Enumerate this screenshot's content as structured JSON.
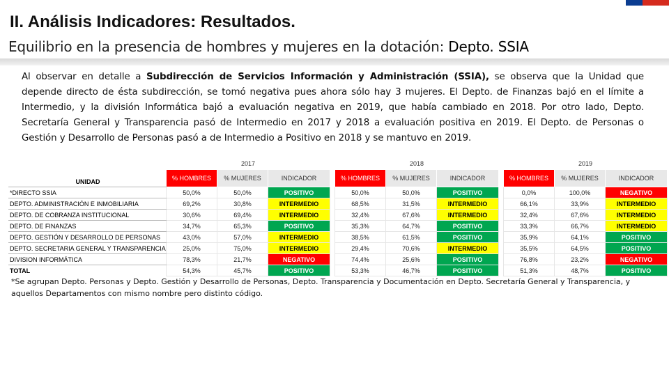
{
  "header": {
    "title": "II. Análisis Indicadores: Resultados.",
    "subtitle_prefix": "Equilibrio en la presencia de hombres y mujeres en la dotación: ",
    "subtitle_strong": "Depto. SSIA"
  },
  "paragraph": {
    "p1": "Al observar en detalle a ",
    "p1_strong": "Subdirección de Servicios Información y Administración (SSIA),",
    "p2": " se observa que la Unidad que depende directo de ésta subdirección, se tomó negativa pues ahora sólo hay 3 mujeres. El Depto. de Finanzas bajó en el límite a Intermedio, y la división Informática bajó a evaluación negativa en 2019, que había cambiado en 2018. Por otro lado, Depto. Secretaría General y Transparencia pasó de Intermedio en 2017 y 2018 a evaluación positiva en 2019. El Depto. de Personas o Gestión y Desarrollo de Personas pasó a de Intermedio a Positivo en 2018 y se mantuvo en 2019."
  },
  "table": {
    "unit_header": "UNIDAD",
    "col_headers": [
      "% HOMBRES",
      "% MUJERES",
      "INDICADOR"
    ],
    "years": [
      "2017",
      "2018",
      "2019"
    ],
    "rows": [
      {
        "unit": "*DIRECTO SSIA",
        "y2017": [
          "50,0%",
          "50,0%",
          "POSITIVO"
        ],
        "y2018": [
          "50,0%",
          "50,0%",
          "POSITIVO"
        ],
        "y2019": [
          "0,0%",
          "100,0%",
          "NEGATIVO"
        ]
      },
      {
        "unit": "DEPTO. ADMINISTRACIÓN E INMOBILIARIA",
        "y2017": [
          "69,2%",
          "30,8%",
          "INTERMEDIO"
        ],
        "y2018": [
          "68,5%",
          "31,5%",
          "INTERMEDIO"
        ],
        "y2019": [
          "66,1%",
          "33,9%",
          "INTERMEDIO"
        ]
      },
      {
        "unit": "DEPTO. DE COBRANZA INSTITUCIONAL",
        "y2017": [
          "30,6%",
          "69,4%",
          "INTERMEDIO"
        ],
        "y2018": [
          "32,4%",
          "67,6%",
          "INTERMEDIO"
        ],
        "y2019": [
          "32,4%",
          "67,6%",
          "INTERMEDIO"
        ]
      },
      {
        "unit": "DEPTO. DE FINANZAS",
        "y2017": [
          "34,7%",
          "65,3%",
          "POSITIVO"
        ],
        "y2018": [
          "35,3%",
          "64,7%",
          "POSITIVO"
        ],
        "y2019": [
          "33,3%",
          "66,7%",
          "INTERMEDIO"
        ]
      },
      {
        "unit": "DEPTO. GESTIÓN Y DESARROLLO DE PERSONAS",
        "y2017": [
          "43,0%",
          "57,0%",
          "INTERMEDIO"
        ],
        "y2018": [
          "38,5%",
          "61,5%",
          "POSITIVO"
        ],
        "y2019": [
          "35,9%",
          "64,1%",
          "POSITIVO"
        ]
      },
      {
        "unit": "DEPTO. SECRETARIA GENERAL Y TRANSPARENCIA",
        "y2017": [
          "25,0%",
          "75,0%",
          "INTERMEDIO"
        ],
        "y2018": [
          "29,4%",
          "70,6%",
          "INTERMEDIO"
        ],
        "y2019": [
          "35,5%",
          "64,5%",
          "POSITIVO"
        ]
      },
      {
        "unit": "DIVISION INFORMÁTICA",
        "y2017": [
          "78,3%",
          "21,7%",
          "NEGATIVO"
        ],
        "y2018": [
          "74,4%",
          "25,6%",
          "POSITIVO"
        ],
        "y2019": [
          "76,8%",
          "23,2%",
          "NEGATIVO"
        ]
      },
      {
        "unit": "TOTAL",
        "y2017": [
          "54,3%",
          "45,7%",
          "POSITIVO"
        ],
        "y2018": [
          "53,3%",
          "46,7%",
          "POSITIVO"
        ],
        "y2019": [
          "51,3%",
          "48,7%",
          "POSITIVO"
        ]
      }
    ]
  },
  "note": "*Se agrupan Depto. Personas y Depto. Gestión y Desarrollo de Personas, Depto. Transparencia y Documentación en Depto. Secretaría General y Transparencia, y aquellos Departamentos con mismo nombre pero distinto código.",
  "colors": {
    "positive": "#00a650",
    "intermediate": "#ffff00",
    "negative": "#ff0000",
    "flag_blue": "#0b3d91",
    "flag_red": "#d52b1e"
  }
}
